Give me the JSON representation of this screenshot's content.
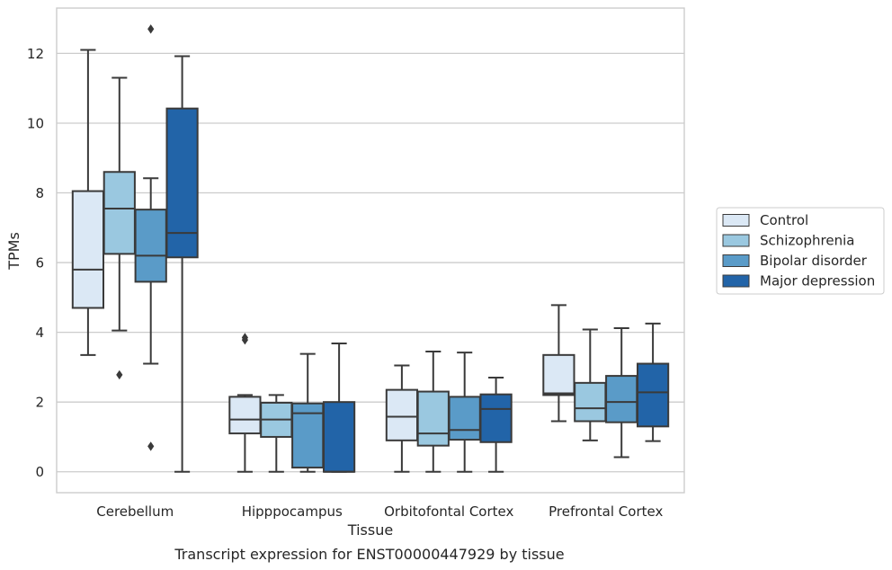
{
  "chart_data": {
    "type": "box",
    "title": "",
    "caption": "Transcript expression for ENST00000447929 by tissue",
    "xlabel": "Tissue",
    "ylabel": "TPMs",
    "ylim": [
      -0.6,
      13.3
    ],
    "yticks": [
      0,
      2,
      4,
      6,
      8,
      10,
      12
    ],
    "grid": "horizontal",
    "legend_position": "right",
    "categories": [
      "Cerebellum",
      "Hipppocampus",
      "Orbitofontal Cortex",
      "Prefrontal Cortex"
    ],
    "series": [
      {
        "name": "Control",
        "color": "#dbe8f5",
        "boxes": [
          {
            "whislo": 3.35,
            "q1": 4.7,
            "med": 5.8,
            "q3": 8.05,
            "whishi": 12.1,
            "fliers": []
          },
          {
            "whislo": 0.0,
            "q1": 1.1,
            "med": 1.5,
            "q3": 2.15,
            "whishi": 2.2,
            "fliers": [
              3.78,
              3.85
            ]
          },
          {
            "whislo": 0.0,
            "q1": 0.9,
            "med": 1.58,
            "q3": 2.35,
            "whishi": 3.05,
            "fliers": []
          },
          {
            "whislo": 1.45,
            "q1": 2.2,
            "med": 2.25,
            "q3": 3.35,
            "whishi": 4.78,
            "fliers": []
          }
        ]
      },
      {
        "name": "Schizophrenia",
        "color": "#9ac8e0",
        "boxes": [
          {
            "whislo": 4.05,
            "q1": 6.25,
            "med": 7.55,
            "q3": 8.6,
            "whishi": 11.3,
            "fliers": [
              2.78
            ]
          },
          {
            "whislo": 0.0,
            "q1": 1.0,
            "med": 1.5,
            "q3": 1.98,
            "whishi": 2.2,
            "fliers": []
          },
          {
            "whislo": 0.0,
            "q1": 0.75,
            "med": 1.1,
            "q3": 2.3,
            "whishi": 3.45,
            "fliers": []
          },
          {
            "whislo": 0.9,
            "q1": 1.45,
            "med": 1.82,
            "q3": 2.55,
            "whishi": 4.08,
            "fliers": []
          }
        ]
      },
      {
        "name": "Bipolar disorder",
        "color": "#5a9bc8",
        "boxes": [
          {
            "whislo": 3.1,
            "q1": 5.45,
            "med": 6.2,
            "q3": 7.52,
            "whishi": 8.42,
            "fliers": [
              12.7,
              0.73
            ]
          },
          {
            "whislo": 0.0,
            "q1": 0.12,
            "med": 1.68,
            "q3": 1.96,
            "whishi": 3.38,
            "fliers": []
          },
          {
            "whislo": 0.0,
            "q1": 0.92,
            "med": 1.2,
            "q3": 2.15,
            "whishi": 3.42,
            "fliers": []
          },
          {
            "whislo": 0.42,
            "q1": 1.42,
            "med": 2.0,
            "q3": 2.75,
            "whishi": 4.12,
            "fliers": []
          }
        ]
      },
      {
        "name": "Major depression",
        "color": "#2264a8",
        "boxes": [
          {
            "whislo": 0.0,
            "q1": 6.15,
            "med": 6.85,
            "q3": 10.42,
            "whishi": 11.92,
            "fliers": []
          },
          {
            "whislo": 0.0,
            "q1": 0.0,
            "med": 0.0,
            "q3": 2.0,
            "whishi": 3.68,
            "fliers": []
          },
          {
            "whislo": 0.0,
            "q1": 0.85,
            "med": 1.8,
            "q3": 2.22,
            "whishi": 2.7,
            "fliers": []
          },
          {
            "whislo": 0.88,
            "q1": 1.3,
            "med": 2.28,
            "q3": 3.1,
            "whishi": 4.25,
            "fliers": []
          }
        ]
      }
    ]
  }
}
